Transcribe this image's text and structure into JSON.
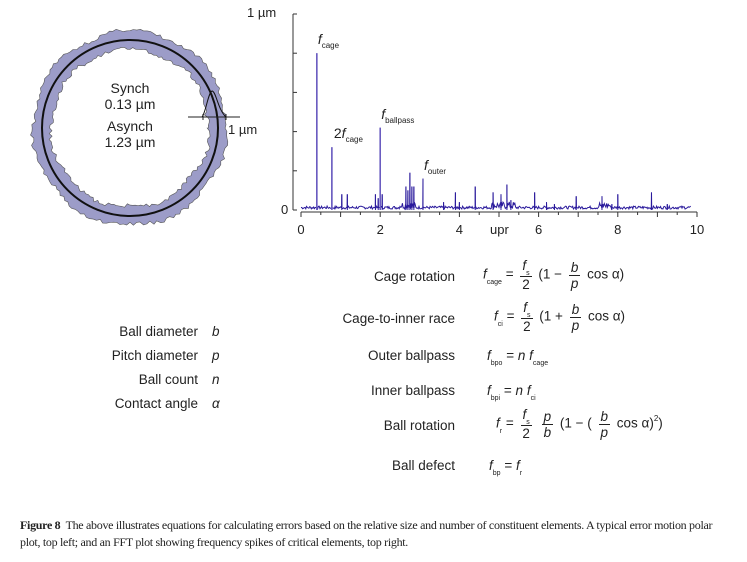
{
  "polar": {
    "synch_label": "Synch",
    "synch_value": "0.13 µm",
    "asynch_label": "Asynch",
    "asynch_value": "1.23 µm",
    "scale_label": "1 µm",
    "ring_color": "#9c9cc8"
  },
  "chart_data": {
    "type": "line",
    "title": "",
    "xlabel": "upr",
    "ylabel": "",
    "y_top_label": "1 µm",
    "y_zero_label": "0",
    "xlim": [
      0,
      10
    ],
    "ylim": [
      0,
      1
    ],
    "x_ticks": [
      "0",
      "2",
      "4",
      "6",
      "8",
      "10"
    ],
    "line_color": "#2a1a9c",
    "peaks": [
      [
        0.4,
        0.8
      ],
      [
        0.78,
        0.32
      ],
      [
        1.03,
        0.08
      ],
      [
        1.17,
        0.08
      ],
      [
        1.88,
        0.08
      ],
      [
        1.95,
        0.06
      ],
      [
        2.0,
        0.42
      ],
      [
        2.05,
        0.08
      ],
      [
        2.65,
        0.12
      ],
      [
        2.7,
        0.1
      ],
      [
        2.75,
        0.19
      ],
      [
        2.8,
        0.12
      ],
      [
        2.85,
        0.12
      ],
      [
        3.08,
        0.16
      ],
      [
        3.6,
        0.04
      ],
      [
        3.9,
        0.09
      ],
      [
        4.0,
        0.04
      ],
      [
        4.4,
        0.12
      ],
      [
        4.85,
        0.09
      ],
      [
        5.05,
        0.08
      ],
      [
        5.2,
        0.13
      ],
      [
        5.3,
        0.05
      ],
      [
        5.9,
        0.09
      ],
      [
        6.2,
        0.04
      ],
      [
        6.4,
        0.03
      ],
      [
        6.95,
        0.07
      ],
      [
        7.6,
        0.07
      ],
      [
        7.85,
        0.03
      ],
      [
        8.0,
        0.08
      ],
      [
        8.85,
        0.09
      ],
      [
        9.25,
        0.03
      ]
    ],
    "annotations": [
      {
        "prefix": "",
        "text": "f",
        "sub": "cage",
        "x": 0.4,
        "y": 0.8
      },
      {
        "prefix": "2",
        "text": "f",
        "sub": "cage",
        "x": 0.78,
        "y": 0.32
      },
      {
        "prefix": "",
        "text": "f",
        "sub": "ballpass",
        "x": 2.0,
        "y": 0.42
      },
      {
        "prefix": "",
        "text": "f",
        "sub": "outer",
        "x": 3.08,
        "y": 0.16
      }
    ]
  },
  "equations": {
    "cage_rotation": "Cage rotation",
    "cage_to_inner": "Cage-to-inner race",
    "outer_ballpass": "Outer ballpass",
    "inner_ballpass": "Inner ballpass",
    "ball_rotation": "Ball rotation",
    "ball_defect": "Ball defect",
    "f": "f",
    "eq": "=",
    "two": "2",
    "s": "s",
    "b": "b",
    "p": "p",
    "n": "n",
    "sub_cage": "cage",
    "sub_ci": "ci",
    "sub_bpo": "bpo",
    "sub_bpi": "bpi",
    "sub_r": "r",
    "sub_bp": "bp",
    "open_minus": "(1 −",
    "open_plus": "(1 +",
    "cos_close": "cos α)",
    "open_minus_paren": "(1 − (",
    "sq": "2",
    "close": ")"
  },
  "variables": [
    {
      "name": "Ball diameter",
      "symbol": "b"
    },
    {
      "name": "Pitch diameter",
      "symbol": "p"
    },
    {
      "name": "Ball count",
      "symbol": "n"
    },
    {
      "name": "Contact angle",
      "symbol": "α"
    }
  ],
  "caption": {
    "label": "Figure 8",
    "text": "The above illustrates equations for calculating errors based on the relative size and number of constituent elements. A typical error motion polar plot, top left; and an FFT plot showing frequency spikes of critical elements, top right."
  }
}
